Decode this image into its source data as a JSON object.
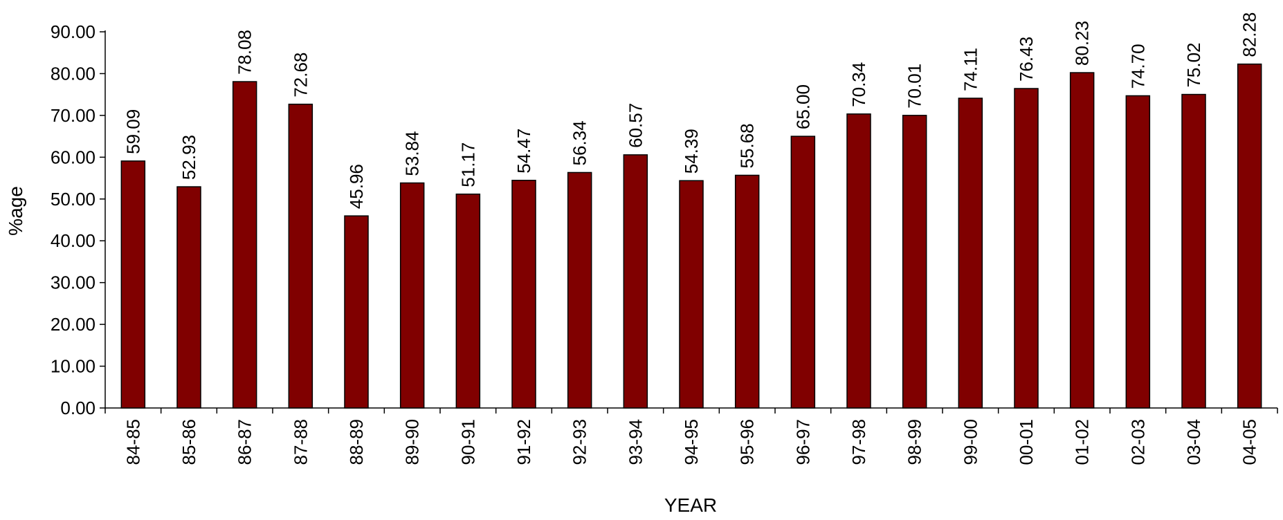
{
  "chart_data": {
    "type": "bar",
    "categories": [
      "84-85",
      "85-86",
      "86-87",
      "87-88",
      "88-89",
      "89-90",
      "90-91",
      "91-92",
      "92-93",
      "93-94",
      "94-95",
      "95-96",
      "96-97",
      "97-98",
      "98-99",
      "99-00",
      "00-01",
      "01-02",
      "02-03",
      "03-04",
      "04-05"
    ],
    "values": [
      59.09,
      52.93,
      78.08,
      72.68,
      45.96,
      53.84,
      51.17,
      54.47,
      56.34,
      60.57,
      54.39,
      55.68,
      65.0,
      70.34,
      70.01,
      74.11,
      76.43,
      80.23,
      74.7,
      75.02,
      82.28
    ],
    "data_labels": [
      "59.09",
      "52.93",
      "78.08",
      "72.68",
      "45.96",
      "53.84",
      "51.17",
      "54.47",
      "56.34",
      "60.57",
      "54.39",
      "55.68",
      "65.00",
      "70.34",
      "70.01",
      "74.11",
      "76.43",
      "80.23",
      "74.70",
      "75.02",
      "82.28"
    ],
    "title": "",
    "xlabel": "YEAR",
    "ylabel": "%age",
    "ylim": [
      0,
      90
    ],
    "yticks": [
      "0.00",
      "10.00",
      "20.00",
      "30.00",
      "40.00",
      "50.00",
      "60.00",
      "70.00",
      "80.00",
      "90.00"
    ],
    "ytick_values": [
      0,
      10,
      20,
      30,
      40,
      50,
      60,
      70,
      80,
      90
    ],
    "grid": false,
    "legend": "none",
    "bar_color": "#800000"
  }
}
